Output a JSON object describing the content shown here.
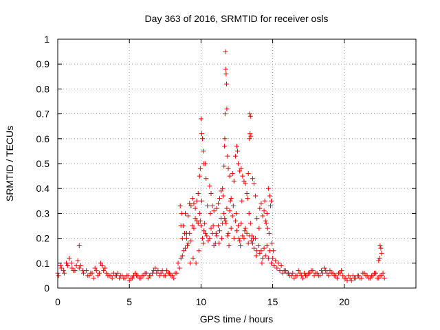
{
  "chart_data": {
    "type": "scatter",
    "title": "Day 363 of 2016, SRMTID for receiver osls",
    "xlabel": "GPS time / hours",
    "ylabel": "SRMTID / TECUs",
    "xlim": [
      0,
      25
    ],
    "ylim": [
      0,
      1
    ],
    "xticks": [
      0,
      5,
      10,
      15,
      20
    ],
    "xtick_labels": [
      "0",
      "5",
      "10",
      "15",
      "20"
    ],
    "yticks": [
      0,
      0.1,
      0.2,
      0.3,
      0.4,
      0.5,
      0.6,
      0.7,
      0.8,
      0.9,
      1
    ],
    "ytick_labels": [
      "0",
      "0.1",
      "0.2",
      "0.3",
      "0.4",
      "0.5",
      "0.6",
      "0.7",
      "0.8",
      "0.9",
      "1"
    ],
    "grid": true,
    "marker": "+",
    "color": "#ee0000",
    "series": [
      {
        "name": "SRMTID",
        "x": [
          0.0,
          0.2,
          0.4,
          0.6,
          0.8,
          1.0,
          1.2,
          1.4,
          1.6,
          1.8,
          2.0,
          2.2,
          2.4,
          2.6,
          2.8,
          3.0,
          3.2,
          3.4,
          3.6,
          3.8,
          4.0,
          4.2,
          4.4,
          4.6,
          4.8,
          5.0,
          5.2,
          5.4,
          5.6,
          5.8,
          6.0,
          6.2,
          6.4,
          6.6,
          6.8,
          7.0,
          7.2,
          7.4,
          7.6,
          7.8,
          8.0,
          8.2,
          8.4,
          8.6,
          8.8,
          9.0,
          9.2,
          9.4,
          9.6,
          9.8,
          10.0,
          10.2,
          10.4,
          10.6,
          10.8,
          11.0,
          11.2,
          11.4,
          11.6,
          11.8,
          12.0,
          12.2,
          12.4,
          12.6,
          12.8,
          13.0,
          13.2,
          13.4,
          13.6,
          13.8,
          14.0,
          14.2,
          14.4,
          14.6,
          14.8,
          15.0,
          15.2,
          15.4,
          15.6,
          15.8,
          16.0,
          16.2,
          16.4,
          16.6,
          16.8,
          17.0,
          17.2,
          17.4,
          17.6,
          17.8,
          18.0,
          18.2,
          18.4,
          18.6,
          18.8,
          19.0,
          19.2,
          19.4,
          19.6,
          19.8,
          20.0,
          20.2,
          20.4,
          20.6,
          20.8,
          21.0,
          21.2,
          21.4,
          21.6,
          21.8,
          22.0,
          22.2,
          22.4,
          22.6,
          22.8,
          0.05,
          0.25,
          0.45,
          0.7,
          0.95,
          1.1,
          1.3,
          1.5,
          1.75,
          2.1,
          2.3,
          2.5,
          2.7,
          2.9,
          3.1,
          3.3,
          3.5,
          3.7,
          3.9,
          4.1,
          4.3,
          4.5,
          4.7,
          4.9,
          5.1,
          5.3,
          5.5,
          5.7,
          5.9,
          6.1,
          6.3,
          6.5,
          6.7,
          6.9,
          7.1,
          7.3,
          7.5,
          7.7,
          7.9,
          8.1,
          8.3,
          8.5,
          8.7,
          8.9,
          9.1,
          9.3,
          9.5,
          9.7,
          9.9,
          10.1,
          10.3,
          10.5,
          10.7,
          10.9,
          11.1,
          11.3,
          11.5,
          11.7,
          11.9,
          12.1,
          12.3,
          12.5,
          12.7,
          12.9,
          13.1,
          13.3,
          13.5,
          13.7,
          13.9,
          14.1,
          14.3,
          14.5,
          14.7,
          14.9,
          15.1,
          15.3,
          15.5,
          15.7,
          15.9,
          16.1,
          16.3,
          16.5,
          16.7,
          16.9,
          17.1,
          17.3,
          17.5,
          17.7,
          17.9,
          18.1,
          18.3,
          18.5,
          18.7,
          18.9,
          19.1,
          19.3,
          19.5,
          19.7,
          19.9,
          20.1,
          20.3,
          20.5,
          20.7,
          20.9,
          21.1,
          21.3,
          21.5,
          21.7,
          21.9,
          22.1,
          22.3,
          22.5,
          22.7,
          8.55,
          8.65,
          8.75,
          8.85,
          9.05,
          9.25,
          9.45,
          9.65,
          9.85,
          9.95,
          10.05,
          10.15,
          10.25,
          10.45,
          10.65,
          10.85,
          11.05,
          11.25,
          11.45,
          11.55,
          11.65,
          11.75,
          11.85,
          11.95,
          12.05,
          12.25,
          12.45,
          12.65,
          12.75,
          12.85,
          13.05,
          13.25,
          13.35,
          13.45,
          13.55,
          13.65,
          13.85,
          14.05,
          14.25,
          14.45,
          14.55,
          14.65,
          14.75,
          14.85,
          14.95,
          15.05,
          10.0,
          10.05,
          10.1,
          10.15,
          10.2,
          9.95,
          9.9,
          11.7,
          11.72,
          11.75,
          11.78,
          11.8,
          11.68,
          11.66,
          11.64,
          11.85,
          11.9,
          12.0,
          13.4,
          13.45,
          13.42,
          13.48,
          13.38,
          12.5,
          12.55,
          12.6,
          12.4,
          12.8,
          12.9,
          13.0,
          13.1,
          13.2,
          14.7,
          14.8,
          14.9,
          22.5,
          22.55,
          22.6,
          22.45,
          22.4,
          1.5,
          10.3,
          10.35,
          11.6,
          12.2,
          12.3,
          13.3,
          14.6,
          9.8,
          9.7,
          9.6,
          8.9,
          9.1,
          9.3,
          9.5,
          10.6,
          10.8,
          11.1,
          11.3,
          11.5,
          12.7,
          13.7,
          13.9,
          14.1,
          14.3,
          14.5,
          10.7,
          10.9,
          11.2,
          11.4,
          12.1,
          13.6,
          13.8,
          14.2,
          14.4,
          9.4,
          9.2,
          8.7,
          8.6,
          9.0
        ],
        "y": [
          0.06,
          0.09,
          0.07,
          0.1,
          0.12,
          0.08,
          0.07,
          0.11,
          0.09,
          0.06,
          0.07,
          0.05,
          0.06,
          0.08,
          0.05,
          0.1,
          0.07,
          0.06,
          0.05,
          0.04,
          0.05,
          0.06,
          0.05,
          0.04,
          0.05,
          0.03,
          0.04,
          0.06,
          0.05,
          0.04,
          0.05,
          0.06,
          0.05,
          0.06,
          0.08,
          0.07,
          0.06,
          0.05,
          0.07,
          0.06,
          0.05,
          0.06,
          0.1,
          0.12,
          0.15,
          0.2,
          0.22,
          0.25,
          0.28,
          0.26,
          0.25,
          0.23,
          0.21,
          0.2,
          0.22,
          0.18,
          0.25,
          0.28,
          0.3,
          0.32,
          0.31,
          0.29,
          0.27,
          0.25,
          0.26,
          0.2,
          0.22,
          0.21,
          0.18,
          0.2,
          0.17,
          0.15,
          0.16,
          0.17,
          0.15,
          0.12,
          0.11,
          0.1,
          0.09,
          0.07,
          0.06,
          0.05,
          0.06,
          0.05,
          0.07,
          0.05,
          0.06,
          0.05,
          0.06,
          0.07,
          0.06,
          0.05,
          0.07,
          0.08,
          0.06,
          0.07,
          0.06,
          0.05,
          0.06,
          0.07,
          0.04,
          0.03,
          0.04,
          0.05,
          0.04,
          0.05,
          0.04,
          0.06,
          0.05,
          0.04,
          0.05,
          0.06,
          0.04,
          0.05,
          0.04,
          0.05,
          0.08,
          0.06,
          0.09,
          0.1,
          0.07,
          0.09,
          0.08,
          0.07,
          0.05,
          0.06,
          0.04,
          0.07,
          0.06,
          0.09,
          0.08,
          0.05,
          0.05,
          0.06,
          0.05,
          0.04,
          0.05,
          0.04,
          0.05,
          0.04,
          0.05,
          0.05,
          0.04,
          0.05,
          0.06,
          0.04,
          0.05,
          0.07,
          0.06,
          0.05,
          0.07,
          0.05,
          0.06,
          0.05,
          0.04,
          0.06,
          0.08,
          0.13,
          0.16,
          0.18,
          0.19,
          0.24,
          0.27,
          0.3,
          0.2,
          0.22,
          0.19,
          0.24,
          0.17,
          0.21,
          0.23,
          0.26,
          0.27,
          0.22,
          0.24,
          0.2,
          0.23,
          0.19,
          0.21,
          0.24,
          0.18,
          0.19,
          0.16,
          0.15,
          0.14,
          0.12,
          0.13,
          0.12,
          0.1,
          0.09,
          0.08,
          0.07,
          0.06,
          0.07,
          0.06,
          0.05,
          0.04,
          0.05,
          0.06,
          0.04,
          0.05,
          0.06,
          0.07,
          0.05,
          0.06,
          0.05,
          0.06,
          0.07,
          0.05,
          0.06,
          0.05,
          0.04,
          0.06,
          0.05,
          0.04,
          0.05,
          0.03,
          0.04,
          0.05,
          0.04,
          0.06,
          0.05,
          0.04,
          0.05,
          0.06,
          0.04,
          0.05,
          0.06,
          0.33,
          0.3,
          0.25,
          0.22,
          0.17,
          0.1,
          0.12,
          0.1,
          0.15,
          0.27,
          0.35,
          0.18,
          0.26,
          0.33,
          0.3,
          0.25,
          0.22,
          0.18,
          0.2,
          0.37,
          0.28,
          0.26,
          0.21,
          0.17,
          0.35,
          0.33,
          0.3,
          0.2,
          0.17,
          0.35,
          0.23,
          0.36,
          0.3,
          0.26,
          0.21,
          0.2,
          0.13,
          0.24,
          0.1,
          0.35,
          0.26,
          0.24,
          0.22,
          0.33,
          0.18,
          0.15,
          0.68,
          0.62,
          0.6,
          0.55,
          0.5,
          0.48,
          0.45,
          0.95,
          0.88,
          0.86,
          0.82,
          0.72,
          0.7,
          0.6,
          0.57,
          0.53,
          0.48,
          0.45,
          0.7,
          0.69,
          0.62,
          0.61,
          0.6,
          0.57,
          0.55,
          0.5,
          0.53,
          0.48,
          0.45,
          0.43,
          0.42,
          0.38,
          0.4,
          0.37,
          0.35,
          0.17,
          0.16,
          0.14,
          0.12,
          0.11,
          0.17,
          0.5,
          0.44,
          0.49,
          0.46,
          0.43,
          0.46,
          0.3,
          0.38,
          0.35,
          0.32,
          0.3,
          0.29,
          0.33,
          0.34,
          0.41,
          0.33,
          0.32,
          0.36,
          0.4,
          0.47,
          0.42,
          0.28,
          0.32,
          0.29,
          0.27,
          0.38,
          0.31,
          0.34,
          0.39,
          0.36,
          0.44,
          0.37,
          0.34,
          0.31,
          0.36,
          0.34,
          0.2,
          0.25,
          0.22
        ]
      }
    ]
  }
}
